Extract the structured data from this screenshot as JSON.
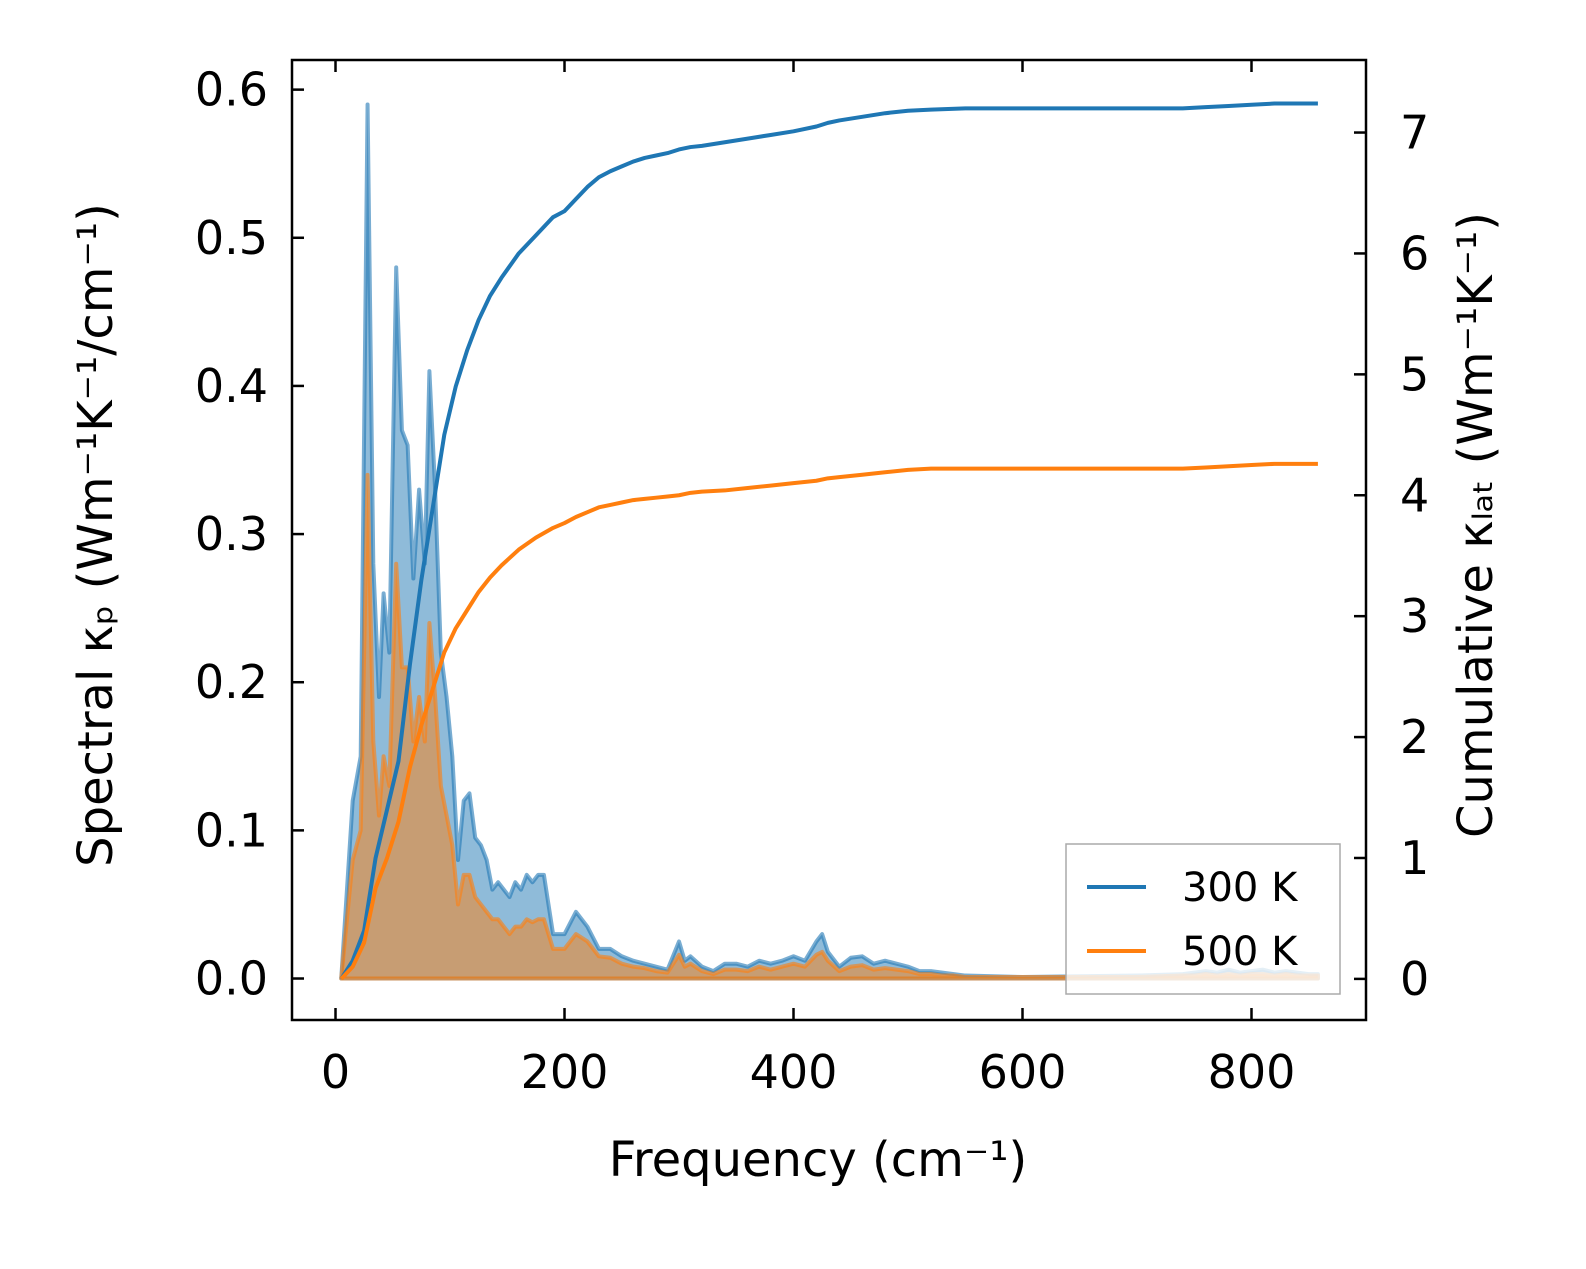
{
  "chart_data": {
    "type": "line",
    "xlabel": "Frequency (cm⁻¹)",
    "ylabel_left": "Spectral κₚ (Wm⁻¹K⁻¹/cm⁻¹)",
    "ylabel_right": "Cumulative κₗₐₜ (Wm⁻¹K⁻¹)",
    "xlim": [
      -38,
      900
    ],
    "ylim_left": [
      -0.028,
      0.62
    ],
    "ylim_right": [
      -0.34,
      7.6
    ],
    "xticks": [
      0,
      200,
      400,
      600,
      800
    ],
    "xtick_labels": [
      "0",
      "200",
      "400",
      "600",
      "800"
    ],
    "yticks_left": [
      0.0,
      0.1,
      0.2,
      0.3,
      0.4,
      0.5,
      0.6
    ],
    "ytick_labels_left": [
      "0.0",
      "0.1",
      "0.2",
      "0.3",
      "0.4",
      "0.5",
      "0.6"
    ],
    "yticks_right": [
      0,
      1,
      2,
      3,
      4,
      5,
      6,
      7
    ],
    "ytick_labels_right": [
      "0",
      "1",
      "2",
      "3",
      "4",
      "5",
      "6",
      "7"
    ],
    "legend_position": "lower-right",
    "series": [
      {
        "name": "300 K",
        "color": "#1f77b4",
        "spectral_x": [
          5,
          15,
          22,
          28,
          33,
          38,
          42,
          47,
          53,
          58,
          63,
          68,
          73,
          78,
          82,
          87,
          92,
          97,
          102,
          107,
          112,
          117,
          122,
          127,
          132,
          137,
          142,
          147,
          152,
          157,
          162,
          167,
          172,
          177,
          182,
          190,
          200,
          210,
          220,
          230,
          240,
          250,
          260,
          270,
          280,
          290,
          300,
          305,
          310,
          320,
          330,
          340,
          350,
          360,
          370,
          380,
          390,
          400,
          410,
          420,
          425,
          430,
          440,
          450,
          460,
          470,
          480,
          490,
          500,
          510,
          520,
          530,
          540,
          550,
          600,
          700,
          740,
          750,
          760,
          770,
          780,
          790,
          800,
          810,
          820,
          830,
          840,
          850,
          858
        ],
        "spectral": [
          0,
          0.12,
          0.15,
          0.59,
          0.28,
          0.19,
          0.26,
          0.22,
          0.48,
          0.37,
          0.36,
          0.27,
          0.33,
          0.28,
          0.41,
          0.33,
          0.22,
          0.19,
          0.15,
          0.08,
          0.12,
          0.125,
          0.095,
          0.09,
          0.08,
          0.06,
          0.065,
          0.06,
          0.055,
          0.065,
          0.06,
          0.07,
          0.065,
          0.07,
          0.07,
          0.03,
          0.03,
          0.045,
          0.035,
          0.02,
          0.02,
          0.015,
          0.012,
          0.01,
          0.008,
          0.006,
          0.025,
          0.012,
          0.015,
          0.008,
          0.005,
          0.01,
          0.01,
          0.008,
          0.012,
          0.01,
          0.012,
          0.015,
          0.012,
          0.025,
          0.03,
          0.018,
          0.008,
          0.014,
          0.015,
          0.01,
          0.012,
          0.01,
          0.008,
          0.005,
          0.005,
          0.004,
          0.003,
          0.002,
          0.001,
          0.002,
          0.003,
          0.004,
          0.005,
          0.004,
          0.006,
          0.004,
          0.005,
          0.006,
          0.004,
          0.005,
          0.004,
          0.003,
          0.003
        ],
        "cumulative_x": [
          5,
          15,
          25,
          35,
          45,
          55,
          65,
          75,
          85,
          95,
          105,
          115,
          125,
          135,
          145,
          160,
          175,
          190,
          200,
          210,
          220,
          230,
          240,
          250,
          260,
          270,
          280,
          290,
          300,
          310,
          320,
          340,
          360,
          380,
          400,
          420,
          430,
          440,
          460,
          480,
          500,
          520,
          550,
          600,
          650,
          700,
          730,
          740,
          760,
          780,
          800,
          820,
          858
        ],
        "cumulative": [
          0,
          0.15,
          0.4,
          1,
          1.4,
          1.8,
          2.6,
          3.3,
          3.9,
          4.5,
          4.9,
          5.2,
          5.45,
          5.65,
          5.8,
          6,
          6.15,
          6.3,
          6.35,
          6.45,
          6.55,
          6.63,
          6.68,
          6.72,
          6.76,
          6.79,
          6.81,
          6.83,
          6.86,
          6.88,
          6.89,
          6.92,
          6.95,
          6.98,
          7.01,
          7.05,
          7.08,
          7.1,
          7.13,
          7.16,
          7.18,
          7.19,
          7.2,
          7.2,
          7.2,
          7.2,
          7.2,
          7.2,
          7.21,
          7.22,
          7.23,
          7.24,
          7.24
        ]
      },
      {
        "name": "500 K",
        "color": "#ff7f0e",
        "spectral_x": [
          5,
          15,
          22,
          28,
          33,
          38,
          42,
          47,
          53,
          58,
          63,
          68,
          73,
          78,
          82,
          87,
          92,
          97,
          102,
          107,
          112,
          117,
          122,
          127,
          132,
          137,
          142,
          147,
          152,
          157,
          162,
          167,
          172,
          177,
          182,
          190,
          200,
          210,
          220,
          230,
          240,
          250,
          260,
          270,
          280,
          290,
          300,
          305,
          310,
          320,
          330,
          340,
          350,
          360,
          370,
          380,
          390,
          400,
          410,
          420,
          425,
          430,
          440,
          450,
          460,
          470,
          480,
          490,
          500,
          510,
          520,
          530,
          540,
          550,
          600,
          700,
          740,
          750,
          760,
          770,
          780,
          790,
          800,
          810,
          820,
          830,
          840,
          850,
          858
        ],
        "spectral": [
          0,
          0.08,
          0.1,
          0.34,
          0.16,
          0.11,
          0.15,
          0.13,
          0.28,
          0.21,
          0.21,
          0.16,
          0.19,
          0.16,
          0.24,
          0.19,
          0.13,
          0.11,
          0.09,
          0.05,
          0.07,
          0.07,
          0.055,
          0.05,
          0.045,
          0.04,
          0.04,
          0.035,
          0.03,
          0.035,
          0.035,
          0.04,
          0.038,
          0.04,
          0.04,
          0.02,
          0.02,
          0.03,
          0.025,
          0.015,
          0.014,
          0.01,
          0.008,
          0.007,
          0.005,
          0.004,
          0.016,
          0.008,
          0.01,
          0.005,
          0.003,
          0.006,
          0.006,
          0.005,
          0.008,
          0.006,
          0.008,
          0.01,
          0.008,
          0.016,
          0.018,
          0.012,
          0.005,
          0.008,
          0.009,
          0.006,
          0.007,
          0.006,
          0.005,
          0.003,
          0.003,
          0.002,
          0.002,
          0.001,
          0.001,
          0.001,
          0.002,
          0.002,
          0.003,
          0.002,
          0.003,
          0.002,
          0.003,
          0.003,
          0.002,
          0.003,
          0.002,
          0.002,
          0.002
        ],
        "cumulative_x": [
          5,
          15,
          25,
          35,
          45,
          55,
          65,
          75,
          85,
          95,
          105,
          115,
          125,
          135,
          145,
          160,
          175,
          190,
          200,
          210,
          220,
          230,
          240,
          250,
          260,
          270,
          280,
          290,
          300,
          310,
          320,
          340,
          360,
          380,
          400,
          420,
          430,
          440,
          460,
          480,
          500,
          520,
          550,
          600,
          650,
          700,
          730,
          740,
          760,
          780,
          800,
          820,
          858
        ],
        "cumulative": [
          0,
          0.1,
          0.3,
          0.75,
          1,
          1.3,
          1.75,
          2.1,
          2.4,
          2.7,
          2.9,
          3.05,
          3.2,
          3.32,
          3.42,
          3.55,
          3.65,
          3.73,
          3.77,
          3.82,
          3.86,
          3.9,
          3.92,
          3.94,
          3.96,
          3.97,
          3.98,
          3.99,
          4.0,
          4.02,
          4.03,
          4.04,
          4.06,
          4.08,
          4.1,
          4.12,
          4.14,
          4.15,
          4.17,
          4.19,
          4.21,
          4.22,
          4.22,
          4.22,
          4.22,
          4.22,
          4.22,
          4.22,
          4.23,
          4.24,
          4.25,
          4.26,
          4.26
        ]
      }
    ]
  }
}
